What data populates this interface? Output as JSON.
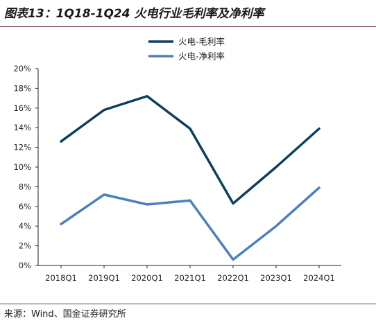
{
  "header": {
    "title": "图表13：1Q18-1Q24 火电行业毛利率及净利率"
  },
  "footer": {
    "source": "来源：Wind、国金证券研究所"
  },
  "colors": {
    "series_gross": "#0b3f5e",
    "series_net": "#4a7fc0",
    "axis": "#222222",
    "rule": "#6b3b3b"
  },
  "chart_data": {
    "type": "line",
    "categories": [
      "2018Q1",
      "2019Q1",
      "2020Q1",
      "2021Q1",
      "2022Q1",
      "2023Q1",
      "2024Q1"
    ],
    "series": [
      {
        "name": "火电-毛利率",
        "values": [
          12.6,
          15.8,
          17.2,
          13.9,
          6.3,
          10.0,
          13.9
        ]
      },
      {
        "name": "火电-净利率",
        "values": [
          4.2,
          7.2,
          6.2,
          6.6,
          0.6,
          4.0,
          7.9
        ]
      }
    ],
    "ylim": [
      0,
      20
    ],
    "yticks": [
      0,
      2,
      4,
      6,
      8,
      10,
      12,
      14,
      16,
      18,
      20
    ],
    "ytick_labels": [
      "0%",
      "2%",
      "4%",
      "6%",
      "8%",
      "10%",
      "12%",
      "14%",
      "16%",
      "18%",
      "20%"
    ],
    "grid": false,
    "legend": "top-center"
  }
}
